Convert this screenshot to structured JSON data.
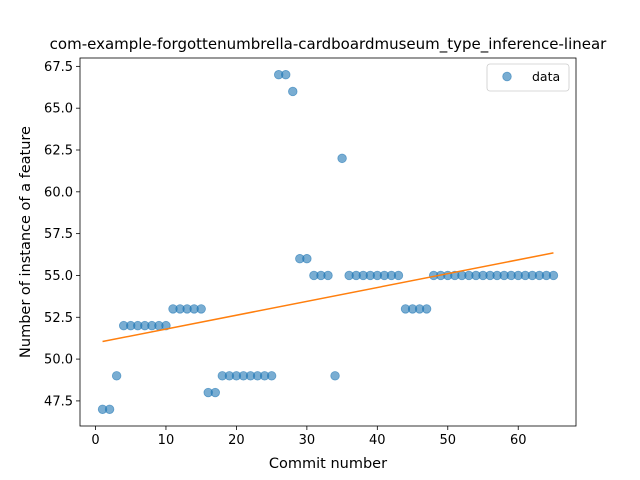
{
  "chart_data": {
    "type": "scatter",
    "title": "com-example-forgottenumbrella-cardboardmuseum_type_inference-linear",
    "xlabel": "Commit number",
    "ylabel": "Number of instance of a feature",
    "xlim": [
      -2.2,
      68.2
    ],
    "ylim": [
      46.0,
      68.0
    ],
    "xticks": [
      0,
      10,
      20,
      30,
      40,
      50,
      60
    ],
    "yticks": [
      47.5,
      50.0,
      52.5,
      55.0,
      57.5,
      60.0,
      62.5,
      65.0,
      67.5
    ],
    "ytick_labels": [
      "47.5",
      "50.0",
      "52.5",
      "55.0",
      "57.5",
      "60.0",
      "62.5",
      "65.0",
      "67.5"
    ],
    "legend": {
      "position": "top-right",
      "entries": [
        "data"
      ]
    },
    "grid": false,
    "series": [
      {
        "name": "data",
        "kind": "scatter",
        "color": "#1f77b4",
        "x": [
          1,
          2,
          3,
          4,
          5,
          6,
          7,
          8,
          9,
          10,
          11,
          12,
          13,
          14,
          15,
          16,
          17,
          18,
          19,
          20,
          21,
          22,
          23,
          24,
          25,
          26,
          27,
          28,
          29,
          30,
          31,
          32,
          33,
          34,
          35,
          36,
          37,
          38,
          39,
          40,
          41,
          42,
          43,
          44,
          45,
          46,
          47,
          48,
          49,
          50,
          51,
          52,
          53,
          54,
          55,
          56,
          57,
          58,
          59,
          60,
          61,
          62,
          63,
          64,
          65
        ],
        "y": [
          47,
          47,
          49,
          52,
          52,
          52,
          52,
          52,
          52,
          52,
          53,
          53,
          53,
          53,
          53,
          48,
          48,
          49,
          49,
          49,
          49,
          49,
          49,
          49,
          49,
          67,
          67,
          66,
          56,
          56,
          55,
          55,
          55,
          49,
          62,
          55,
          55,
          55,
          55,
          55,
          55,
          55,
          55,
          53,
          53,
          53,
          53,
          55,
          55,
          55,
          55,
          55,
          55,
          55,
          55,
          55,
          55,
          55,
          55,
          55,
          55,
          55,
          55,
          55,
          55
        ]
      },
      {
        "kind": "line",
        "color": "#ff7f0e",
        "x": [
          1,
          65
        ],
        "y": [
          51.05,
          56.35
        ]
      }
    ]
  }
}
